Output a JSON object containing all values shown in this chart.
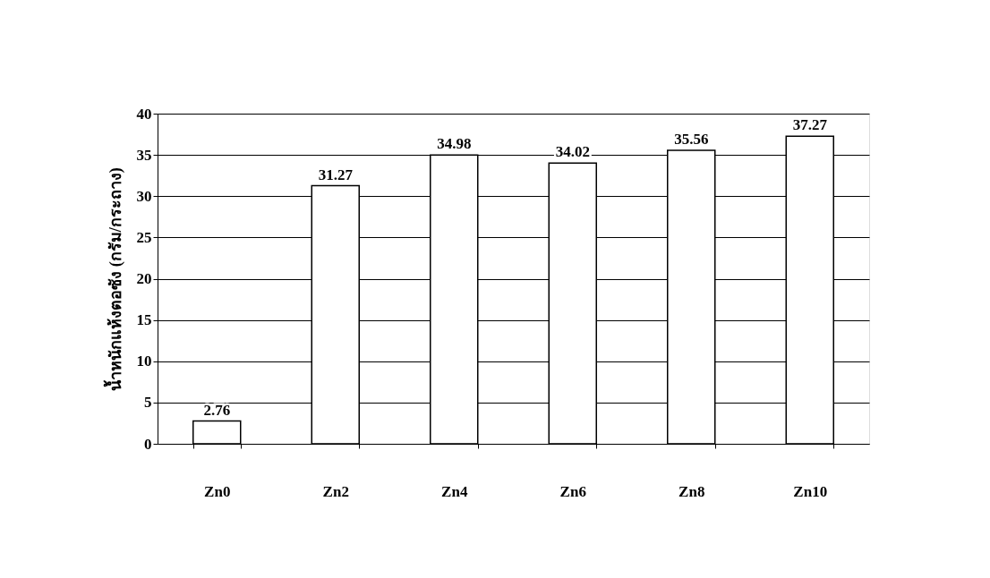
{
  "chart_data": {
    "type": "bar",
    "ylabel": "น้ำหนักแห้งตอซัง (กรัม/กระถาง)",
    "categories": [
      "Zn0",
      "Zn2",
      "Zn4",
      "Zn6",
      "Zn8",
      "Zn10"
    ],
    "values": [
      2.76,
      31.27,
      34.98,
      34.02,
      35.56,
      37.27
    ],
    "color": "#ffffff",
    "ylim": [
      0,
      40
    ],
    "yticks": [
      0,
      5,
      10,
      15,
      20,
      25,
      30,
      35,
      40
    ],
    "grid": "y",
    "data_labels": true
  }
}
